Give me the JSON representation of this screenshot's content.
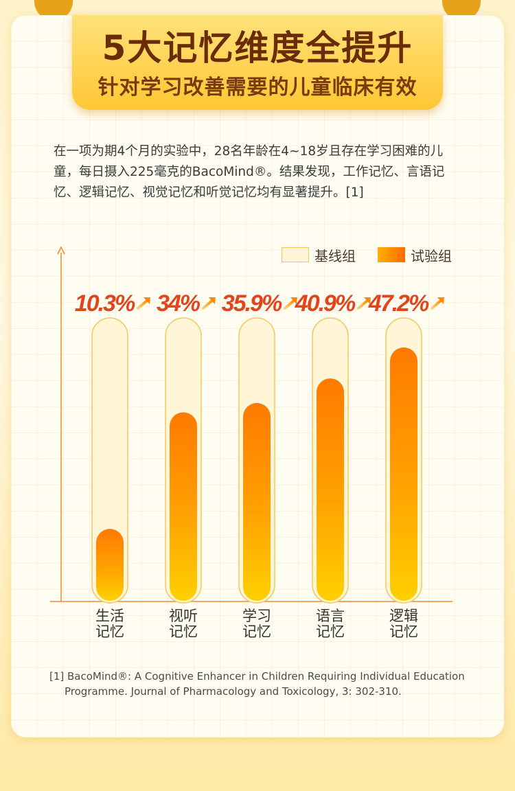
{
  "header": {
    "title": "5大记忆维度全提升",
    "subtitle": "针对学习改善需要的儿童临床有效"
  },
  "intro": "在一项为期4个月的实验中，28名年龄在4~18岁且存在学习困难的儿童，每日摄入225毫克的BacoMind®。结果发现，工作记忆、言语记忆、逻辑记忆、视觉记忆和听觉记忆均有显著提升。[1]",
  "colors": {
    "title": "#6a2c06",
    "accent": "#ff7a00",
    "percent_label": "#e0461c",
    "axis": "#f0892a",
    "baseline_fill": "#fff6d8",
    "baseline_stroke": "#f4c660"
  },
  "chart_data": {
    "type": "bar",
    "categories": [
      {
        "line1": "生活",
        "line2": "记忆"
      },
      {
        "line1": "视听",
        "line2": "记忆"
      },
      {
        "line1": "学习",
        "line2": "记忆"
      },
      {
        "line1": "语言",
        "line2": "记忆"
      },
      {
        "line1": "逻辑",
        "line2": "记忆"
      }
    ],
    "legend": {
      "baseline": "基线组",
      "treatment": "试验组"
    },
    "series": [
      {
        "name": "试验组",
        "improvement": [
          "10.3%",
          "34%",
          "35.9%",
          "40.9%",
          "47.2%"
        ]
      }
    ],
    "up_arrow_icon": "arrow-up-right-icon"
  },
  "footnote": "[1] BacoMind®: A Cognitive Enhancer in Children Requiring Individual Education Programme. Journal of Pharmacology and Toxicology, 3: 302-310."
}
